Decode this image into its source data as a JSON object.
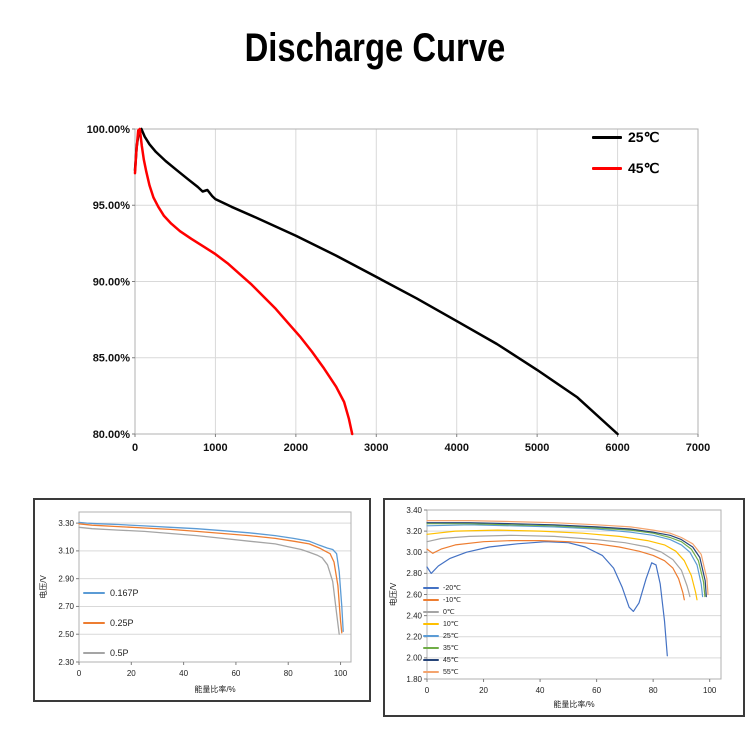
{
  "page": {
    "title": "Discharge Curve"
  },
  "chart_data": [
    {
      "type": "line",
      "title": "Discharge Curve",
      "xlabel": "",
      "ylabel": "",
      "xlim": [
        0,
        7000
      ],
      "ylim": [
        80,
        100
      ],
      "xticks": [
        0,
        1000,
        2000,
        3000,
        4000,
        5000,
        6000,
        7000
      ],
      "xtick_labels": [
        "0",
        "1000",
        "2000",
        "3000",
        "4000",
        "5000",
        "6000",
        "7000"
      ],
      "yticks": [
        80,
        85,
        90,
        95,
        100
      ],
      "ytick_labels": [
        "80.00%",
        "85.00%",
        "90.00%",
        "95.00%",
        "100.00%"
      ],
      "grid": {
        "x": true,
        "y": true
      },
      "legend_position": "top-right",
      "series": [
        {
          "name": "25℃",
          "color": "#000000",
          "width": 2.5,
          "points": [
            [
              0,
              97.3
            ],
            [
              20,
              98.8
            ],
            [
              50,
              99.9
            ],
            [
              80,
              100.0
            ],
            [
              120,
              99.5
            ],
            [
              180,
              99.0
            ],
            [
              260,
              98.5
            ],
            [
              380,
              97.9
            ],
            [
              520,
              97.3
            ],
            [
              660,
              96.7
            ],
            [
              780,
              96.2
            ],
            [
              840,
              95.9
            ],
            [
              900,
              96.0
            ],
            [
              960,
              95.6
            ],
            [
              1000,
              95.4
            ],
            [
              1200,
              94.9
            ],
            [
              1500,
              94.2
            ],
            [
              2000,
              93.0
            ],
            [
              2500,
              91.7
            ],
            [
              3000,
              90.3
            ],
            [
              3500,
              88.9
            ],
            [
              4000,
              87.4
            ],
            [
              4500,
              85.9
            ],
            [
              5000,
              84.2
            ],
            [
              5500,
              82.4
            ],
            [
              6000,
              80.0
            ]
          ]
        },
        {
          "name": "45℃",
          "color": "#ff0000",
          "width": 2.5,
          "points": [
            [
              0,
              97.1
            ],
            [
              15,
              98.4
            ],
            [
              40,
              99.9
            ],
            [
              60,
              100.0
            ],
            [
              85,
              98.9
            ],
            [
              110,
              98.0
            ],
            [
              140,
              97.2
            ],
            [
              180,
              96.3
            ],
            [
              230,
              95.5
            ],
            [
              290,
              94.9
            ],
            [
              360,
              94.3
            ],
            [
              450,
              93.8
            ],
            [
              560,
              93.3
            ],
            [
              700,
              92.8
            ],
            [
              850,
              92.3
            ],
            [
              1000,
              91.8
            ],
            [
              1150,
              91.2
            ],
            [
              1300,
              90.5
            ],
            [
              1450,
              89.8
            ],
            [
              1600,
              89.0
            ],
            [
              1750,
              88.2
            ],
            [
              1900,
              87.3
            ],
            [
              2050,
              86.4
            ],
            [
              2200,
              85.4
            ],
            [
              2350,
              84.3
            ],
            [
              2500,
              83.1
            ],
            [
              2600,
              82.1
            ],
            [
              2660,
              81.0
            ],
            [
              2700,
              80.0
            ]
          ]
        }
      ]
    },
    {
      "type": "line",
      "title": "",
      "xlabel": "能量比率/%",
      "ylabel": "电压/V",
      "xlim": [
        0,
        104
      ],
      "ylim": [
        2.3,
        3.38
      ],
      "xticks": [
        0,
        20,
        40,
        60,
        80,
        100
      ],
      "xtick_labels": [
        "0",
        "20",
        "40",
        "60",
        "80",
        "100"
      ],
      "yticks": [
        2.3,
        2.5,
        2.7,
        2.9,
        3.1,
        3.3
      ],
      "ytick_labels": [
        "2.30",
        "2.50",
        "2.70",
        "2.90",
        "3.10",
        "3.30"
      ],
      "grid": {
        "x": false,
        "y": true
      },
      "legend_position": "left",
      "series": [
        {
          "name": "0.167P",
          "color": "#5b9bd5",
          "width": 1.3,
          "points": [
            [
              0,
              3.305
            ],
            [
              3,
              3.3
            ],
            [
              8,
              3.295
            ],
            [
              15,
              3.29
            ],
            [
              25,
              3.28
            ],
            [
              35,
              3.27
            ],
            [
              45,
              3.26
            ],
            [
              55,
              3.245
            ],
            [
              65,
              3.23
            ],
            [
              75,
              3.21
            ],
            [
              82,
              3.19
            ],
            [
              88,
              3.17
            ],
            [
              92,
              3.14
            ],
            [
              95,
              3.12
            ],
            [
              97,
              3.11
            ],
            [
              98.5,
              3.08
            ],
            [
              99.5,
              2.95
            ],
            [
              100.5,
              2.7
            ],
            [
              101,
              2.52
            ]
          ]
        },
        {
          "name": "0.25P",
          "color": "#ed7d31",
          "width": 1.3,
          "points": [
            [
              0,
              3.295
            ],
            [
              5,
              3.285
            ],
            [
              15,
              3.275
            ],
            [
              25,
              3.265
            ],
            [
              35,
              3.255
            ],
            [
              45,
              3.24
            ],
            [
              55,
              3.225
            ],
            [
              65,
              3.21
            ],
            [
              75,
              3.19
            ],
            [
              82,
              3.17
            ],
            [
              88,
              3.15
            ],
            [
              92,
              3.12
            ],
            [
              94,
              3.1
            ],
            [
              96,
              3.08
            ],
            [
              97.5,
              3.02
            ],
            [
              99,
              2.85
            ],
            [
              100,
              2.6
            ],
            [
              100.5,
              2.51
            ]
          ]
        },
        {
          "name": "0.5P",
          "color": "#a5a5a5",
          "width": 1.3,
          "points": [
            [
              0,
              3.27
            ],
            [
              5,
              3.26
            ],
            [
              15,
              3.25
            ],
            [
              25,
              3.24
            ],
            [
              35,
              3.225
            ],
            [
              45,
              3.21
            ],
            [
              55,
              3.19
            ],
            [
              65,
              3.17
            ],
            [
              75,
              3.15
            ],
            [
              80,
              3.13
            ],
            [
              85,
              3.11
            ],
            [
              88,
              3.09
            ],
            [
              91,
              3.07
            ],
            [
              93,
              3.05
            ],
            [
              95,
              3.0
            ],
            [
              97,
              2.88
            ],
            [
              98.5,
              2.65
            ],
            [
              99.5,
              2.5
            ]
          ]
        }
      ]
    },
    {
      "type": "line",
      "title": "",
      "xlabel": "能量比率/%",
      "ylabel": "电压/V",
      "xlim": [
        0,
        104
      ],
      "ylim": [
        1.8,
        3.4
      ],
      "xticks": [
        0,
        20,
        40,
        60,
        80,
        100
      ],
      "xtick_labels": [
        "0",
        "20",
        "40",
        "60",
        "80",
        "100"
      ],
      "yticks": [
        1.8,
        2.0,
        2.2,
        2.4,
        2.6,
        2.8,
        3.0,
        3.2,
        3.4
      ],
      "ytick_labels": [
        "1.80",
        "2.00",
        "2.20",
        "2.40",
        "2.60",
        "2.80",
        "3.00",
        "3.20",
        "3.40"
      ],
      "grid": {
        "x": false,
        "y": true
      },
      "legend_position": "left",
      "series": [
        {
          "name": "-20℃",
          "color": "#4472c4",
          "width": 1.2,
          "points": [
            [
              0,
              2.86
            ],
            [
              1.5,
              2.8
            ],
            [
              4,
              2.87
            ],
            [
              8,
              2.94
            ],
            [
              14,
              3.0
            ],
            [
              22,
              3.05
            ],
            [
              32,
              3.08
            ],
            [
              42,
              3.1
            ],
            [
              50,
              3.09
            ],
            [
              56,
              3.05
            ],
            [
              62,
              2.97
            ],
            [
              66,
              2.85
            ],
            [
              69,
              2.67
            ],
            [
              71.5,
              2.48
            ],
            [
              73,
              2.44
            ],
            [
              75,
              2.52
            ],
            [
              77.5,
              2.75
            ],
            [
              79.5,
              2.9
            ],
            [
              81,
              2.88
            ],
            [
              82.5,
              2.7
            ],
            [
              84,
              2.35
            ],
            [
              85,
              2.02
            ]
          ]
        },
        {
          "name": "-10℃",
          "color": "#ed7d31",
          "width": 1.2,
          "points": [
            [
              0,
              3.03
            ],
            [
              2,
              2.99
            ],
            [
              5,
              3.03
            ],
            [
              10,
              3.07
            ],
            [
              20,
              3.1
            ],
            [
              30,
              3.11
            ],
            [
              40,
              3.11
            ],
            [
              50,
              3.1
            ],
            [
              60,
              3.08
            ],
            [
              68,
              3.05
            ],
            [
              75,
              3.01
            ],
            [
              80,
              2.97
            ],
            [
              84,
              2.92
            ],
            [
              87,
              2.85
            ],
            [
              89,
              2.75
            ],
            [
              90.5,
              2.62
            ],
            [
              91,
              2.55
            ]
          ]
        },
        {
          "name": "0℃",
          "color": "#a5a5a5",
          "width": 1.2,
          "points": [
            [
              0,
              3.1
            ],
            [
              5,
              3.13
            ],
            [
              15,
              3.15
            ],
            [
              30,
              3.16
            ],
            [
              45,
              3.15
            ],
            [
              60,
              3.12
            ],
            [
              70,
              3.09
            ],
            [
              78,
              3.05
            ],
            [
              83,
              3.0
            ],
            [
              87,
              2.93
            ],
            [
              90,
              2.83
            ],
            [
              92,
              2.68
            ],
            [
              93,
              2.58
            ]
          ]
        },
        {
          "name": "10℃",
          "color": "#ffc000",
          "width": 1.2,
          "points": [
            [
              0,
              3.17
            ],
            [
              10,
              3.2
            ],
            [
              25,
              3.21
            ],
            [
              40,
              3.2
            ],
            [
              55,
              3.18
            ],
            [
              68,
              3.15
            ],
            [
              78,
              3.11
            ],
            [
              84,
              3.07
            ],
            [
              88,
              3.01
            ],
            [
              91,
              2.92
            ],
            [
              93.5,
              2.78
            ],
            [
              95,
              2.62
            ],
            [
              95.5,
              2.55
            ]
          ]
        },
        {
          "name": "25℃",
          "color": "#5b9bd5",
          "width": 1.2,
          "points": [
            [
              0,
              3.25
            ],
            [
              15,
              3.26
            ],
            [
              30,
              3.25
            ],
            [
              45,
              3.24
            ],
            [
              60,
              3.22
            ],
            [
              72,
              3.19
            ],
            [
              80,
              3.16
            ],
            [
              86,
              3.12
            ],
            [
              90,
              3.07
            ],
            [
              93,
              3.0
            ],
            [
              95.5,
              2.88
            ],
            [
              97,
              2.7
            ],
            [
              97.5,
              2.58
            ]
          ]
        },
        {
          "name": "35℃",
          "color": "#70ad47",
          "width": 1.2,
          "points": [
            [
              0,
              3.27
            ],
            [
              15,
              3.27
            ],
            [
              30,
              3.26
            ],
            [
              45,
              3.25
            ],
            [
              60,
              3.23
            ],
            [
              72,
              3.21
            ],
            [
              80,
              3.18
            ],
            [
              86,
              3.14
            ],
            [
              90,
              3.1
            ],
            [
              93.5,
              3.03
            ],
            [
              96,
              2.92
            ],
            [
              97.8,
              2.72
            ],
            [
              98.3,
              2.58
            ]
          ]
        },
        {
          "name": "45℃",
          "color": "#264478",
          "width": 1.2,
          "points": [
            [
              0,
              3.28
            ],
            [
              15,
              3.28
            ],
            [
              30,
              3.27
            ],
            [
              45,
              3.26
            ],
            [
              60,
              3.24
            ],
            [
              72,
              3.22
            ],
            [
              80,
              3.19
            ],
            [
              86,
              3.16
            ],
            [
              90,
              3.12
            ],
            [
              94,
              3.05
            ],
            [
              96.5,
              2.95
            ],
            [
              98.4,
              2.73
            ],
            [
              98.8,
              2.58
            ]
          ]
        },
        {
          "name": "55℃",
          "color": "#f4a46e",
          "width": 1.2,
          "points": [
            [
              0,
              3.3
            ],
            [
              15,
              3.3
            ],
            [
              30,
              3.29
            ],
            [
              45,
              3.28
            ],
            [
              60,
              3.26
            ],
            [
              72,
              3.24
            ],
            [
              80,
              3.21
            ],
            [
              86,
              3.18
            ],
            [
              90,
              3.14
            ],
            [
              94,
              3.08
            ],
            [
              97,
              2.98
            ],
            [
              99,
              2.75
            ],
            [
              99.4,
              2.6
            ]
          ]
        }
      ]
    }
  ]
}
